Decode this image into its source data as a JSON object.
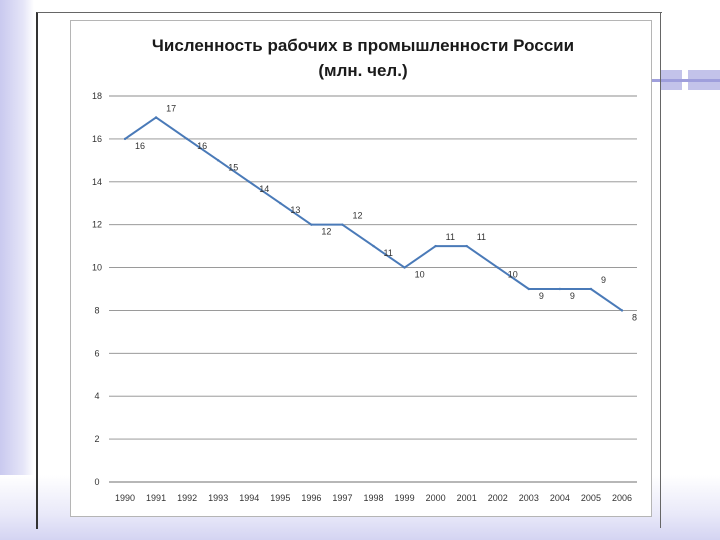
{
  "chart_data": {
    "type": "line",
    "title_line1": "Численность рабочих в промышленности России",
    "title_line2": "(млн. чел.)",
    "categories": [
      "1990",
      "1991",
      "1992",
      "1993",
      "1994",
      "1995",
      "1996",
      "1997",
      "1998",
      "1999",
      "2000",
      "2001",
      "2002",
      "2003",
      "2004",
      "2005",
      "2006"
    ],
    "series": [
      {
        "values": [
          16,
          17,
          16,
          15,
          14,
          13,
          12,
          12,
          11,
          10,
          11,
          11,
          10,
          9,
          9,
          9,
          8
        ]
      }
    ],
    "data_labels": [
      "16",
      "17",
      "16",
      "15",
      "14",
      "13",
      "12",
      "12",
      "11",
      "10",
      "11",
      "11",
      "10",
      "9",
      "9",
      "9",
      "8"
    ],
    "y_ticks": [
      "0",
      "2",
      "4",
      "6",
      "8",
      "10",
      "12",
      "14",
      "16",
      "18"
    ],
    "ylim": [
      0,
      18
    ],
    "grid": true,
    "legend": "none",
    "colors": {
      "line": "#4a7ab8",
      "grid": "#8c8c8c",
      "text": "#333333"
    }
  }
}
